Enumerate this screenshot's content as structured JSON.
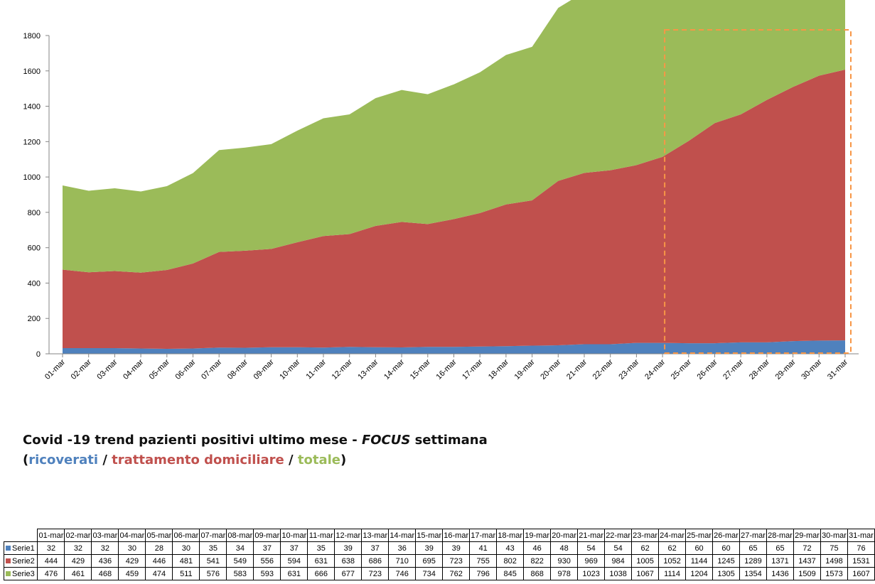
{
  "chart_data": {
    "type": "area",
    "stacked": true,
    "categories": [
      "01-mar",
      "02-mar",
      "03-mar",
      "04-mar",
      "05-mar",
      "06-mar",
      "07-mar",
      "08-mar",
      "09-mar",
      "10-mar",
      "11-mar",
      "12-mar",
      "13-mar",
      "14-mar",
      "15-mar",
      "16-mar",
      "17-mar",
      "18-mar",
      "19-mar",
      "20-mar",
      "21-mar",
      "22-mar",
      "23-mar",
      "24-mar",
      "25-mar",
      "26-mar",
      "27-mar",
      "28-mar",
      "29-mar",
      "30-mar",
      "31-mar"
    ],
    "series": [
      {
        "name": "Serie1",
        "color": "#4f81bd",
        "values": [
          32,
          32,
          32,
          30,
          28,
          30,
          35,
          34,
          37,
          37,
          35,
          39,
          37,
          36,
          39,
          39,
          41,
          43,
          46,
          48,
          54,
          54,
          62,
          62,
          60,
          60,
          65,
          65,
          72,
          75,
          76
        ]
      },
      {
        "name": "Serie2",
        "color": "#c0504d",
        "values": [
          444,
          429,
          436,
          429,
          446,
          481,
          541,
          549,
          556,
          594,
          631,
          638,
          686,
          710,
          695,
          723,
          755,
          802,
          822,
          930,
          969,
          984,
          1005,
          1052,
          1144,
          1245,
          1289,
          1371,
          1437,
          1498,
          1531
        ]
      },
      {
        "name": "Serie3",
        "color": "#9bbb59",
        "values": [
          476,
          461,
          468,
          459,
          474,
          511,
          576,
          583,
          593,
          631,
          666,
          677,
          723,
          746,
          734,
          762,
          796,
          845,
          868,
          978,
          1023,
          1038,
          1067,
          1114,
          1204,
          1305,
          1354,
          1436,
          1509,
          1573,
          1607
        ]
      }
    ],
    "ylim": [
      0,
      1800
    ],
    "yticks": [
      "0",
      "200",
      "400",
      "600",
      "800",
      "1000",
      "1200",
      "1400",
      "1600",
      "1800"
    ],
    "grid": false,
    "highlight": {
      "from": "24-mar",
      "to": "31-mar",
      "color": "#f79646"
    }
  },
  "caption": {
    "line1_a": "Covid -19 trend pazienti positivi ultimo mese - ",
    "line1_focus": "FOCUS",
    "line1_b": " settimana",
    "open_paren": "(",
    "ricoverati": "ricoverati",
    "sep1": " / ",
    "trattamento": "trattamento domiciliare",
    "sep2": " / ",
    "totale": "totale",
    "close_paren": ")"
  }
}
